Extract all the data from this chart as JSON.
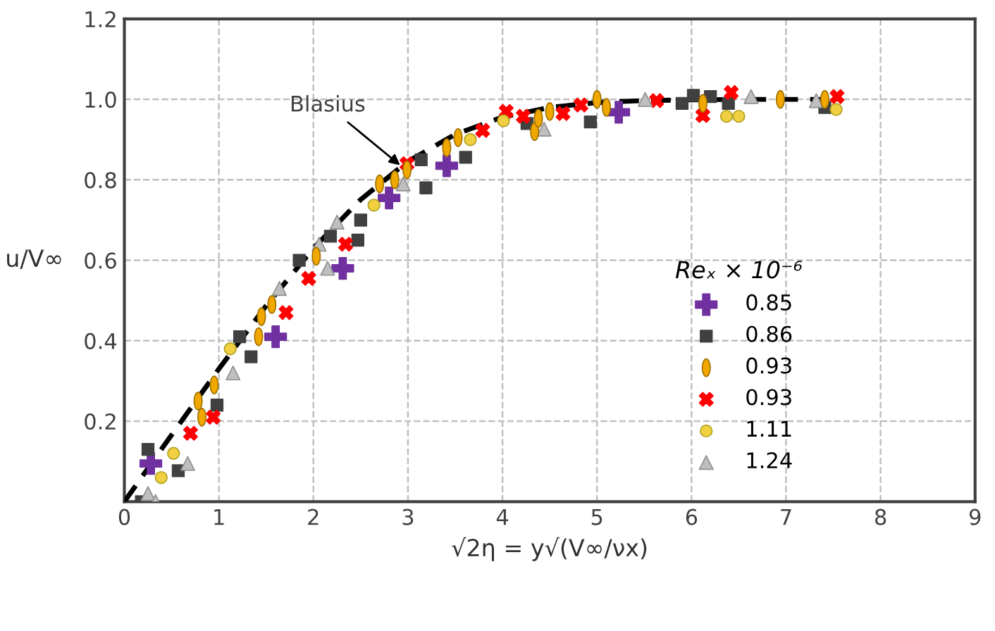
{
  "chart_data": {
    "type": "scatter",
    "xlabel": "√2η = y√(V∞/νx)",
    "ylabel": "u/V∞",
    "legend_title": "Reₓ × 10⁻⁶",
    "xlim": [
      0,
      9
    ],
    "ylim": [
      0,
      1.2
    ],
    "xticks": [
      0,
      1,
      2,
      3,
      4,
      5,
      6,
      7,
      8,
      9
    ],
    "yticks": [
      {
        "value": 0,
        "label": null
      },
      0.2,
      0.4,
      0.6,
      0.8,
      {
        "value": 1,
        "label": "1.0"
      },
      1.2
    ],
    "grid": true,
    "legend": "lower right",
    "annotations": [
      {
        "text": "Blasius",
        "x": 2.95,
        "y": 0.83
      }
    ],
    "series": [
      {
        "type": "line",
        "color": "#000000",
        "line_style": "dashed",
        "marker": "none",
        "x": [
          0,
          0.5,
          1,
          1.5,
          2,
          2.5,
          3,
          3.5,
          4,
          4.5,
          5,
          5.5,
          6,
          6.5,
          7,
          7.4
        ],
        "values": [
          0,
          0.166,
          0.33,
          0.487,
          0.63,
          0.751,
          0.846,
          0.913,
          0.956,
          0.98,
          0.992,
          0.997,
          0.999,
          1.0,
          1.0,
          1.0
        ]
      },
      {
        "name": "0.85",
        "color": "#7030a0",
        "marker": "plus",
        "x": [
          0.28,
          1.6,
          2.31,
          2.8,
          3.41,
          5.23
        ],
        "values": [
          0.095,
          0.41,
          0.58,
          0.755,
          0.835,
          0.968
        ]
      },
      {
        "name": "0.86",
        "color": "#404040",
        "marker": "square",
        "x": [
          0.25,
          0.18,
          0.57,
          0.98,
          1.22,
          1.34,
          1.85,
          2.18,
          2.47,
          2.5,
          3.14,
          3.19,
          3.61,
          4.26,
          4.93,
          5.9,
          6.02,
          6.2,
          6.39,
          7.41
        ],
        "values": [
          0.13,
          0.0,
          0.077,
          0.24,
          0.41,
          0.36,
          0.6,
          0.66,
          0.65,
          0.7,
          0.85,
          0.78,
          0.856,
          0.94,
          0.944,
          0.99,
          1.01,
          1.007,
          0.99,
          0.98
        ]
      },
      {
        "name": "0.93",
        "color": "#f0a800",
        "x": [
          0.78,
          0.82,
          0.95,
          1.42,
          1.45,
          1.56,
          2.03,
          2.7,
          2.86,
          2.99,
          3.41,
          3.53,
          4.34,
          4.38,
          4.5,
          5.0,
          5.1,
          6.12,
          6.94,
          7.41
        ],
        "values": [
          0.25,
          0.21,
          0.29,
          0.41,
          0.46,
          0.49,
          0.61,
          0.79,
          0.8,
          0.825,
          0.88,
          0.905,
          0.92,
          0.953,
          0.97,
          1.0,
          0.98,
          0.99,
          1.0,
          1.0
        ]
      },
      {
        "name": "0.93",
        "color": "#ff0000",
        "marker": "cross",
        "x": [
          0.7,
          0.94,
          1.71,
          1.95,
          2.34,
          2.99,
          3.79,
          4.04,
          4.22,
          4.64,
          4.83,
          5.63,
          6.12,
          6.42,
          7.54
        ],
        "values": [
          0.17,
          0.21,
          0.47,
          0.555,
          0.64,
          0.84,
          0.923,
          0.97,
          0.958,
          0.965,
          0.986,
          0.997,
          0.96,
          1.017,
          1.007
        ]
      },
      {
        "name": "1.11",
        "color": "#f0d040",
        "marker": "circle",
        "x": [
          0.52,
          0.39,
          1.12,
          2.64,
          3.66,
          4.01,
          6.37,
          6.5,
          7.53
        ],
        "values": [
          0.12,
          0.06,
          0.38,
          0.737,
          0.9,
          0.947,
          0.958,
          0.958,
          0.975
        ]
      },
      {
        "name": "1.24",
        "color": "#bfbfbf",
        "marker": "triangle",
        "x": [
          0.25,
          0.33,
          0.67,
          1.15,
          1.64,
          2.06,
          2.25,
          2.15,
          2.95,
          4.44,
          5.51,
          6.63,
          7.32
        ],
        "values": [
          0.02,
          0.0,
          0.095,
          0.32,
          0.53,
          0.64,
          0.695,
          0.58,
          0.79,
          0.926,
          1.0,
          1.007,
          0.997
        ]
      }
    ]
  }
}
